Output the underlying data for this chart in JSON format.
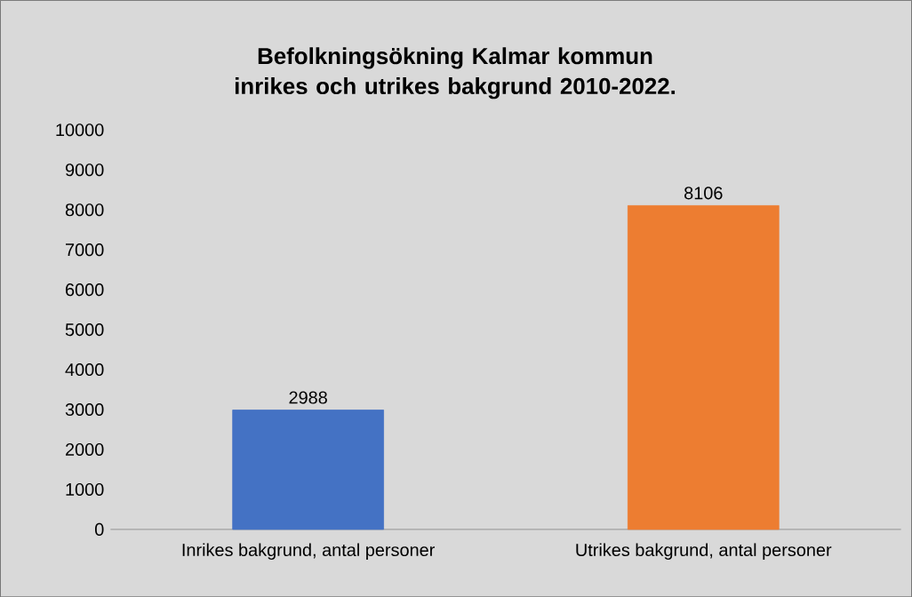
{
  "chart_data": {
    "type": "bar",
    "title": "Befolkningsökning Kalmar kommun inrikes och utrikes bakgrund 2010-2022.",
    "categories": [
      "Inrikes bakgrund, antal personer",
      "Utrikes bakgrund, antal personer"
    ],
    "values": [
      2988,
      8106
    ],
    "colors": [
      "#4472c4",
      "#ed7d31"
    ],
    "ylim": [
      0,
      10000
    ],
    "yticks": [
      0,
      1000,
      2000,
      3000,
      4000,
      5000,
      6000,
      7000,
      8000,
      9000,
      10000
    ],
    "data_labels": true
  }
}
